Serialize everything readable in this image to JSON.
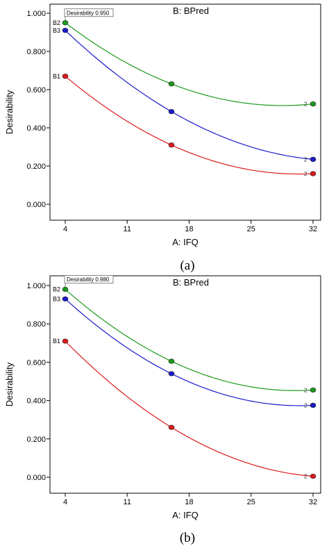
{
  "chart_data": [
    {
      "type": "line",
      "panel_label": "(a)",
      "title": "B: BPred",
      "xlabel": "A: IFQ",
      "ylabel": "Desirability",
      "xlim": [
        4,
        32
      ],
      "ylim": [
        0,
        1
      ],
      "x_ticks": [
        4,
        11,
        18,
        25,
        32
      ],
      "x_tick_labels": [
        "4",
        "11",
        "18",
        "25",
        "32"
      ],
      "y_ticks": [
        0,
        0.2,
        0.4,
        0.6,
        0.8,
        1.0
      ],
      "y_tick_labels": [
        "0.000",
        "0.200",
        "0.400",
        "0.600",
        "0.800",
        "1.000"
      ],
      "annotation": "Desirability 0.950",
      "series": [
        {
          "name": "B2",
          "end_label": "2",
          "color": "#1a9a1a",
          "x": [
            4,
            16,
            32
          ],
          "y": [
            0.95,
            0.63,
            0.525
          ]
        },
        {
          "name": "B3",
          "end_label": "2",
          "color": "#1a1acc",
          "x": [
            4,
            16,
            32
          ],
          "y": [
            0.91,
            0.485,
            0.235
          ]
        },
        {
          "name": "B1",
          "end_label": "2",
          "color": "#dd1a1a",
          "x": [
            4,
            16,
            32
          ],
          "y": [
            0.67,
            0.31,
            0.16
          ]
        }
      ]
    },
    {
      "type": "line",
      "panel_label": "(b)",
      "title": "B: BPred",
      "xlabel": "A: IFQ",
      "ylabel": "Desirability",
      "xlim": [
        4,
        32
      ],
      "ylim": [
        0,
        1
      ],
      "x_ticks": [
        4,
        11,
        18,
        25,
        32
      ],
      "x_tick_labels": [
        "4",
        "11",
        "18",
        "25",
        "32"
      ],
      "y_ticks": [
        0,
        0.2,
        0.4,
        0.6,
        0.8,
        1.0
      ],
      "y_tick_labels": [
        "0.000",
        "0.200",
        "0.400",
        "0.600",
        "0.800",
        "1.000"
      ],
      "annotation": "Desirability 0.980",
      "series": [
        {
          "name": "B2",
          "end_label": "2",
          "color": "#1a9a1a",
          "x": [
            4,
            16,
            32
          ],
          "y": [
            0.98,
            0.605,
            0.455
          ]
        },
        {
          "name": "B3",
          "end_label": "2",
          "color": "#1a1acc",
          "x": [
            4,
            16,
            32
          ],
          "y": [
            0.93,
            0.54,
            0.375
          ]
        },
        {
          "name": "B1",
          "end_label": "2",
          "color": "#dd1a1a",
          "x": [
            4,
            16,
            32
          ],
          "y": [
            0.71,
            0.26,
            0.005
          ]
        }
      ]
    }
  ]
}
